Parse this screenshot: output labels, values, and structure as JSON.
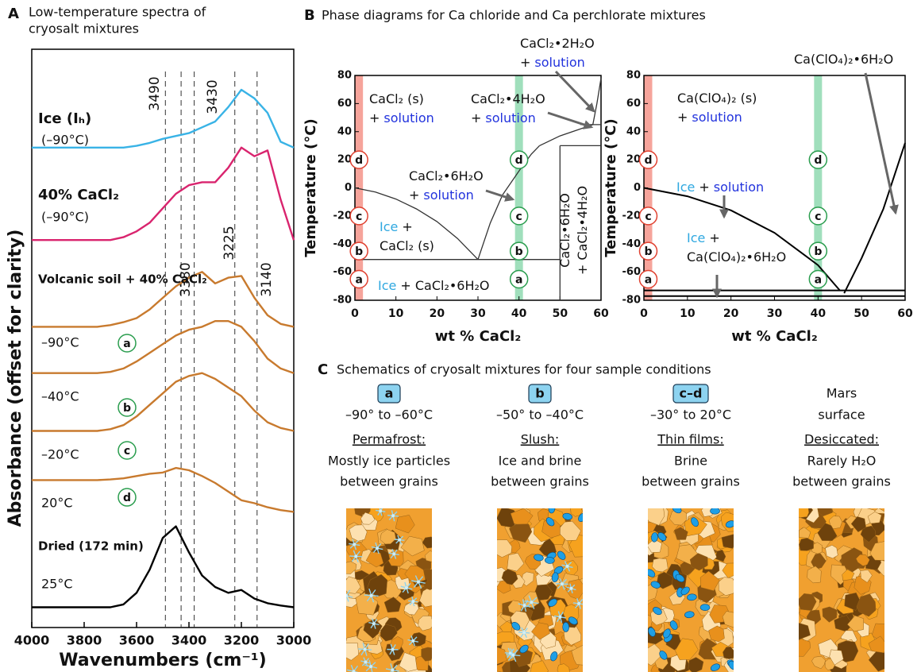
{
  "panels": [
    {
      "letter": "A",
      "title": [
        "Low-temperature spectra of",
        "cryosalt mixtures"
      ]
    },
    {
      "letter": "B",
      "title": "Phase diagrams for Ca chloride and Ca perchlorate mixtures"
    },
    {
      "letter": "C",
      "title": "Schematics of cryosalt mixtures for four sample conditions"
    }
  ],
  "chart_data": [
    {
      "type": "line",
      "xlabel": "Wavenumbers (cm⁻¹)",
      "ylabel": "Absorbance (offset for clarity)",
      "x": [
        4000,
        3950,
        3900,
        3850,
        3800,
        3750,
        3700,
        3650,
        3600,
        3550,
        3500,
        3450,
        3400,
        3350,
        3300,
        3250,
        3200,
        3150,
        3100,
        3050,
        3000
      ],
      "xlim": [
        4000,
        3000
      ],
      "xticks": [
        4000,
        3800,
        3600,
        3400,
        3200,
        3000
      ],
      "ylim": [
        4,
        104
      ],
      "peak_lines": [
        3490,
        3430,
        3380,
        3225,
        3140
      ],
      "series": [
        {
          "name": "Ice (Iₕ)",
          "temperature": "(–90°C)",
          "color": "#39b3e6",
          "values": [
            87,
            87,
            87,
            87,
            87,
            87,
            87,
            87,
            87.3,
            87.8,
            88.5,
            89,
            89.5,
            90.5,
            91.5,
            94,
            97,
            95.5,
            93,
            88,
            87
          ]
        },
        {
          "name": "40% CaCl₂",
          "temperature": "(–90°C)",
          "color": "#d9246e",
          "values": [
            71,
            71,
            71,
            71,
            71,
            71,
            71,
            71.5,
            72.5,
            74,
            76.5,
            79,
            80.5,
            81,
            81,
            83.5,
            87,
            85.5,
            86.5,
            78,
            71
          ]
        },
        {
          "name": "Volcanic soil + 40% CaCl₂",
          "temperature": "–90°C",
          "condition": "a",
          "color": "#c87a2e",
          "values": [
            56,
            56,
            56,
            56,
            56,
            56,
            56.3,
            56.8,
            57.5,
            59,
            61,
            63,
            64.5,
            65.5,
            63.5,
            64.5,
            64.8,
            61,
            58,
            56.5,
            56
          ]
        },
        {
          "temperature": "–40°C",
          "condition": "b",
          "color": "#c87a2e",
          "values": [
            48,
            48,
            48,
            48,
            48,
            48,
            48.2,
            48.8,
            50,
            51.5,
            53,
            54.5,
            55.5,
            56,
            57,
            57,
            56,
            53.5,
            50.5,
            48.8,
            48
          ]
        },
        {
          "temperature": "–20°C",
          "condition": "c",
          "color": "#c87a2e",
          "values": [
            38,
            38,
            38,
            38,
            38,
            38,
            38.3,
            39,
            40.5,
            42.5,
            44.5,
            46.5,
            47.5,
            48,
            47,
            45.5,
            44,
            41.5,
            39.5,
            38.5,
            38
          ]
        },
        {
          "temperature": "20°C",
          "condition": "d",
          "color": "#c87a2e",
          "values": [
            29.5,
            29.5,
            29.5,
            29.5,
            29.5,
            29.5,
            29.6,
            29.8,
            30.2,
            30.6,
            30.8,
            31.6,
            31.2,
            30.2,
            29,
            27.5,
            26,
            25.5,
            24.8,
            24.3,
            24
          ]
        },
        {
          "name": "Dried  (172 min)",
          "temperature": "25°C",
          "color": "#000000",
          "values": [
            7.5,
            7.5,
            7.5,
            7.5,
            7.5,
            7.5,
            7.5,
            8,
            10,
            14,
            19.5,
            21.5,
            17,
            13,
            11,
            10,
            10.5,
            9,
            8.2,
            7.8,
            7.5
          ]
        }
      ]
    },
    {
      "type": "phase_diagram",
      "xlabel": "wt % CaCl₂",
      "ylabel": "Temperature (°C)",
      "xlim": [
        0,
        60
      ],
      "ylim": [
        -80,
        80
      ],
      "xticks": [
        0,
        10,
        20,
        30,
        40,
        50,
        60
      ],
      "yticks": [
        -80,
        -60,
        -40,
        -20,
        0,
        20,
        40,
        60,
        80
      ],
      "bands": [
        {
          "x": 1,
          "color": "#f4948a",
          "marker_color": "#e0402f"
        },
        {
          "x": 40,
          "color": "#8fd9b0",
          "marker_color": "#2a9d4e"
        }
      ],
      "conditions": [
        {
          "label": "a",
          "y": -65
        },
        {
          "label": "b",
          "y": -45
        },
        {
          "label": "c",
          "y": -20
        },
        {
          "label": "d",
          "y": 20
        }
      ],
      "line_color": "#333333",
      "boundaries": [
        {
          "x": [
            0,
            5,
            10,
            15,
            20,
            25,
            30
          ],
          "y": [
            0,
            -3,
            -8,
            -15,
            -24,
            -36,
            -51
          ]
        },
        {
          "x": [
            30,
            33,
            36,
            40,
            43,
            45
          ],
          "y": [
            -51,
            -25,
            -5,
            12,
            24,
            30
          ]
        },
        {
          "x": [
            45,
            50,
            55,
            58
          ],
          "y": [
            30,
            37,
            42,
            45
          ]
        },
        {
          "x": [
            58,
            59,
            60
          ],
          "y": [
            45,
            60,
            78
          ]
        },
        {
          "x": [
            0,
            50
          ],
          "y": [
            -51,
            -51
          ]
        },
        {
          "x": [
            50,
            50
          ],
          "y": [
            -80,
            30
          ]
        },
        {
          "x": [
            50,
            60
          ],
          "y": [
            30,
            30
          ]
        },
        {
          "x": [
            55,
            60
          ],
          "y": [
            45,
            45
          ]
        }
      ],
      "regions": [
        {
          "lines": [
            [
              {
                "text": "CaCl₂ (s)"
              }
            ],
            [
              {
                "text": "+"
              },
              {
                "text": "solution",
                "color": "#2233dd"
              }
            ]
          ]
        },
        {
          "lines": [
            [
              {
                "text": "CaCl₂•4H₂O"
              }
            ],
            [
              {
                "text": "+"
              },
              {
                "text": "solution",
                "color": "#2233dd"
              }
            ]
          ]
        },
        {
          "lines": [
            [
              {
                "text": "CaCl₂•2H₂O"
              }
            ],
            [
              {
                "text": "+"
              },
              {
                "text": "solution",
                "color": "#2233dd"
              }
            ]
          ]
        },
        {
          "lines": [
            [
              {
                "text": "CaCl₂•6H₂O"
              }
            ],
            [
              {
                "text": "+"
              },
              {
                "text": "solution",
                "color": "#2233dd"
              }
            ]
          ]
        },
        {
          "lines": [
            [
              {
                "text": "Ice",
                "color": "#2fa8e0"
              },
              {
                "text": "+"
              }
            ],
            [
              {
                "text": "CaCl₂ (s)"
              }
            ]
          ]
        },
        {
          "lines": [
            [
              {
                "text": "Ice",
                "color": "#2fa8e0"
              },
              {
                "text": "+ CaCl₂•6H₂O"
              }
            ]
          ]
        },
        {
          "lines": [
            [
              {
                "text": "CaCl₂•6H₂O"
              }
            ],
            [
              {
                "text": "+ CaCl₂•4H₂O"
              }
            ]
          ]
        }
      ]
    },
    {
      "type": "phase_diagram",
      "xlabel": "wt % CaCl₂",
      "ylabel": "Temperature (°C)",
      "xlim": [
        0,
        60
      ],
      "ylim": [
        -80,
        80
      ],
      "xticks": [
        0,
        10,
        20,
        30,
        40,
        50,
        60
      ],
      "yticks": [
        -80,
        -60,
        -40,
        -20,
        0,
        20,
        40,
        60,
        80
      ],
      "bands": [
        {
          "x": 1,
          "color": "#f4948a",
          "marker_color": "#e0402f"
        },
        {
          "x": 40,
          "color": "#8fd9b0",
          "marker_color": "#2a9d4e"
        }
      ],
      "conditions": [
        {
          "label": "a",
          "y": -65
        },
        {
          "label": "b",
          "y": -45
        },
        {
          "label": "c",
          "y": -20
        },
        {
          "label": "d",
          "y": 20
        }
      ],
      "line_color": "#000000",
      "boundaries": [
        {
          "x": [
            0,
            10,
            20,
            30,
            40,
            45
          ],
          "y": [
            0,
            -6,
            -16,
            -32,
            -55,
            -73
          ]
        },
        {
          "x": [
            46,
            50,
            55,
            60
          ],
          "y": [
            -75,
            -50,
            -15,
            32
          ]
        },
        {
          "x": [
            0,
            60
          ],
          "y": [
            -73,
            -73
          ]
        },
        {
          "x": [
            0,
            60
          ],
          "y": [
            -77,
            -77
          ]
        }
      ],
      "regions": [
        {
          "lines": [
            [
              {
                "text": "Ca(ClO₄)₂•6H₂O"
              }
            ]
          ]
        },
        {
          "lines": [
            [
              {
                "text": "Ca(ClO₄)₂ (s)"
              }
            ],
            [
              {
                "text": "+"
              },
              {
                "text": "solution",
                "color": "#2233dd"
              }
            ]
          ]
        },
        {
          "lines": [
            [
              {
                "text": "Ice",
                "color": "#2fa8e0"
              },
              {
                "text": "+"
              },
              {
                "text": "solution",
                "color": "#2233dd"
              }
            ]
          ]
        },
        {
          "lines": [
            [
              {
                "text": "Ice",
                "color": "#2fa8e0"
              },
              {
                "text": "+"
              }
            ],
            [
              {
                "text": "Ca(ClO₄)₂•6H₂O"
              }
            ]
          ]
        }
      ]
    }
  ],
  "schematics": [
    {
      "badge": "a",
      "temperature": "–90° to –60°C",
      "state": "Permafrost:",
      "description": [
        "Mostly ice particles",
        "between grains"
      ],
      "ice": true,
      "brine": false
    },
    {
      "badge": "b",
      "temperature": "–50° to –40°C",
      "state": "Slush:",
      "description": [
        "Ice and brine",
        "between grains"
      ],
      "ice": true,
      "brine": true
    },
    {
      "badge": "c–d",
      "temperature": "–30° to 20°C",
      "state": "Thin films:",
      "description": [
        "Brine",
        "between grains"
      ],
      "ice": false,
      "brine": true
    },
    {
      "title": [
        "Mars",
        "surface"
      ],
      "state": "Desiccated:",
      "description": [
        "Rarely H₂O",
        "between grains"
      ],
      "ice": false,
      "brine": false
    }
  ]
}
